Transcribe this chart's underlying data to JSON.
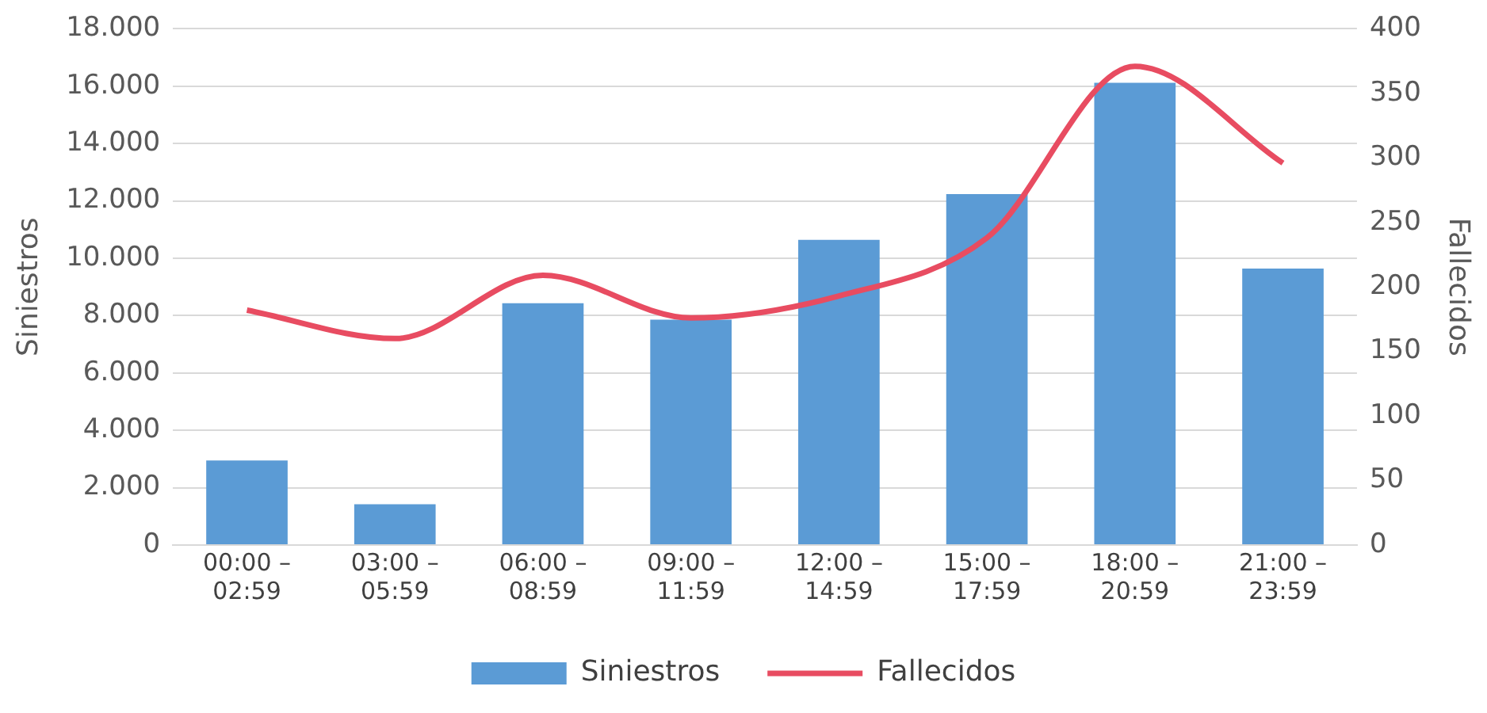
{
  "chart_data": {
    "type": "bar",
    "categories": [
      "00:00 – 02:59",
      "03:00 – 05:59",
      "06:00 – 08:59",
      "09:00 – 11:59",
      "12:00 – 14:59",
      "15:00 – 17:59",
      "18:00 – 20:59",
      "21:00 – 23:59"
    ],
    "series": [
      {
        "name": "Siniestros",
        "color": "#5b9bd5",
        "values": [
          2950,
          1420,
          8430,
          7860,
          10640,
          12240,
          16120,
          9640
        ]
      },
      {
        "name": "Fallecidos",
        "type": "line",
        "axis": "y2",
        "color": "#e84c61",
        "values": [
          182,
          160,
          209,
          176,
          193,
          238,
          371,
          296
        ]
      }
    ],
    "ylabel": "Siniestros",
    "y2label": "Fallecidos",
    "ylim": [
      0,
      18000
    ],
    "yticks": [
      {
        "value": 0,
        "label": "0"
      },
      {
        "value": 2000,
        "label": "2.000"
      },
      {
        "value": 4000,
        "label": "4.000"
      },
      {
        "value": 6000,
        "label": "6.000"
      },
      {
        "value": 8000,
        "label": "8.000"
      },
      {
        "value": 10000,
        "label": "10.000"
      },
      {
        "value": 12000,
        "label": "12.000"
      },
      {
        "value": 14000,
        "label": "14.000"
      },
      {
        "value": 16000,
        "label": "16.000"
      },
      {
        "value": 18000,
        "label": "18.000"
      }
    ],
    "y2lim": [
      0,
      400
    ],
    "y2ticks": [
      0,
      50,
      100,
      150,
      200,
      250,
      300,
      350,
      400
    ],
    "grid": "y",
    "legend": "bottom",
    "marker": "none"
  }
}
